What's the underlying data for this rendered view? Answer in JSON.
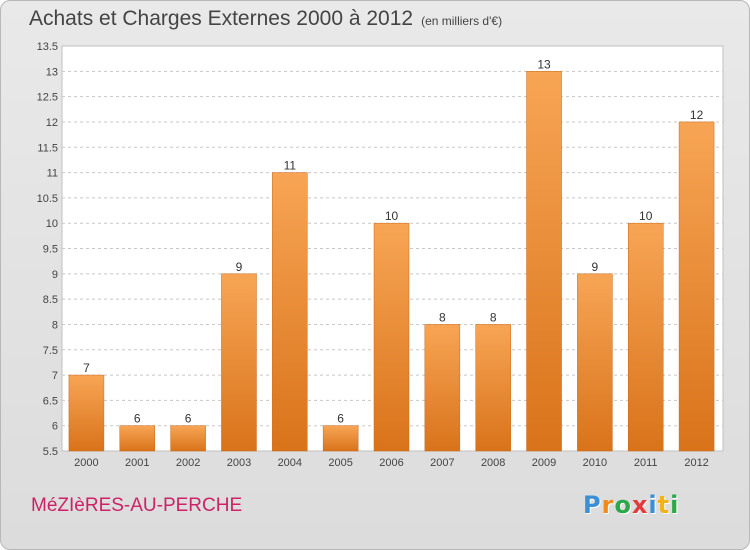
{
  "title": "Achats et Charges Externes 2000 à 2012",
  "subtitle": "(en milliers d'€)",
  "commune": "MéZIèRES-AU-PERCHE",
  "logo": {
    "letters": [
      "P",
      "r",
      "o",
      "x",
      "i",
      "t",
      "i"
    ],
    "colors": [
      "#3a8fd6",
      "#f28a1a",
      "#2aa84a",
      "#e33b3b",
      "#3a8fd6",
      "#f2b21a",
      "#2aa84a"
    ]
  },
  "colors": {
    "bar_top": "#f7a555",
    "bar_bottom": "#d9731a",
    "grid": "#c8c8c8"
  },
  "chart_data": {
    "type": "bar",
    "title": "Achats et Charges Externes 2000 à 2012",
    "subtitle": "(en milliers d'€)",
    "categories": [
      "2000",
      "2001",
      "2002",
      "2003",
      "2004",
      "2005",
      "2006",
      "2007",
      "2008",
      "2009",
      "2010",
      "2011",
      "2012"
    ],
    "values": [
      7,
      6,
      6,
      9,
      11,
      6,
      10,
      8,
      8,
      13,
      9,
      10,
      12
    ],
    "ylim": [
      5.5,
      13.5
    ],
    "yticks": [
      "5.5",
      "6",
      "6.5",
      "7",
      "7.5",
      "8",
      "8.5",
      "9",
      "9.5",
      "10",
      "10.5",
      "11",
      "11.5",
      "12",
      "12.5",
      "13",
      "13.5"
    ],
    "grid": true
  }
}
